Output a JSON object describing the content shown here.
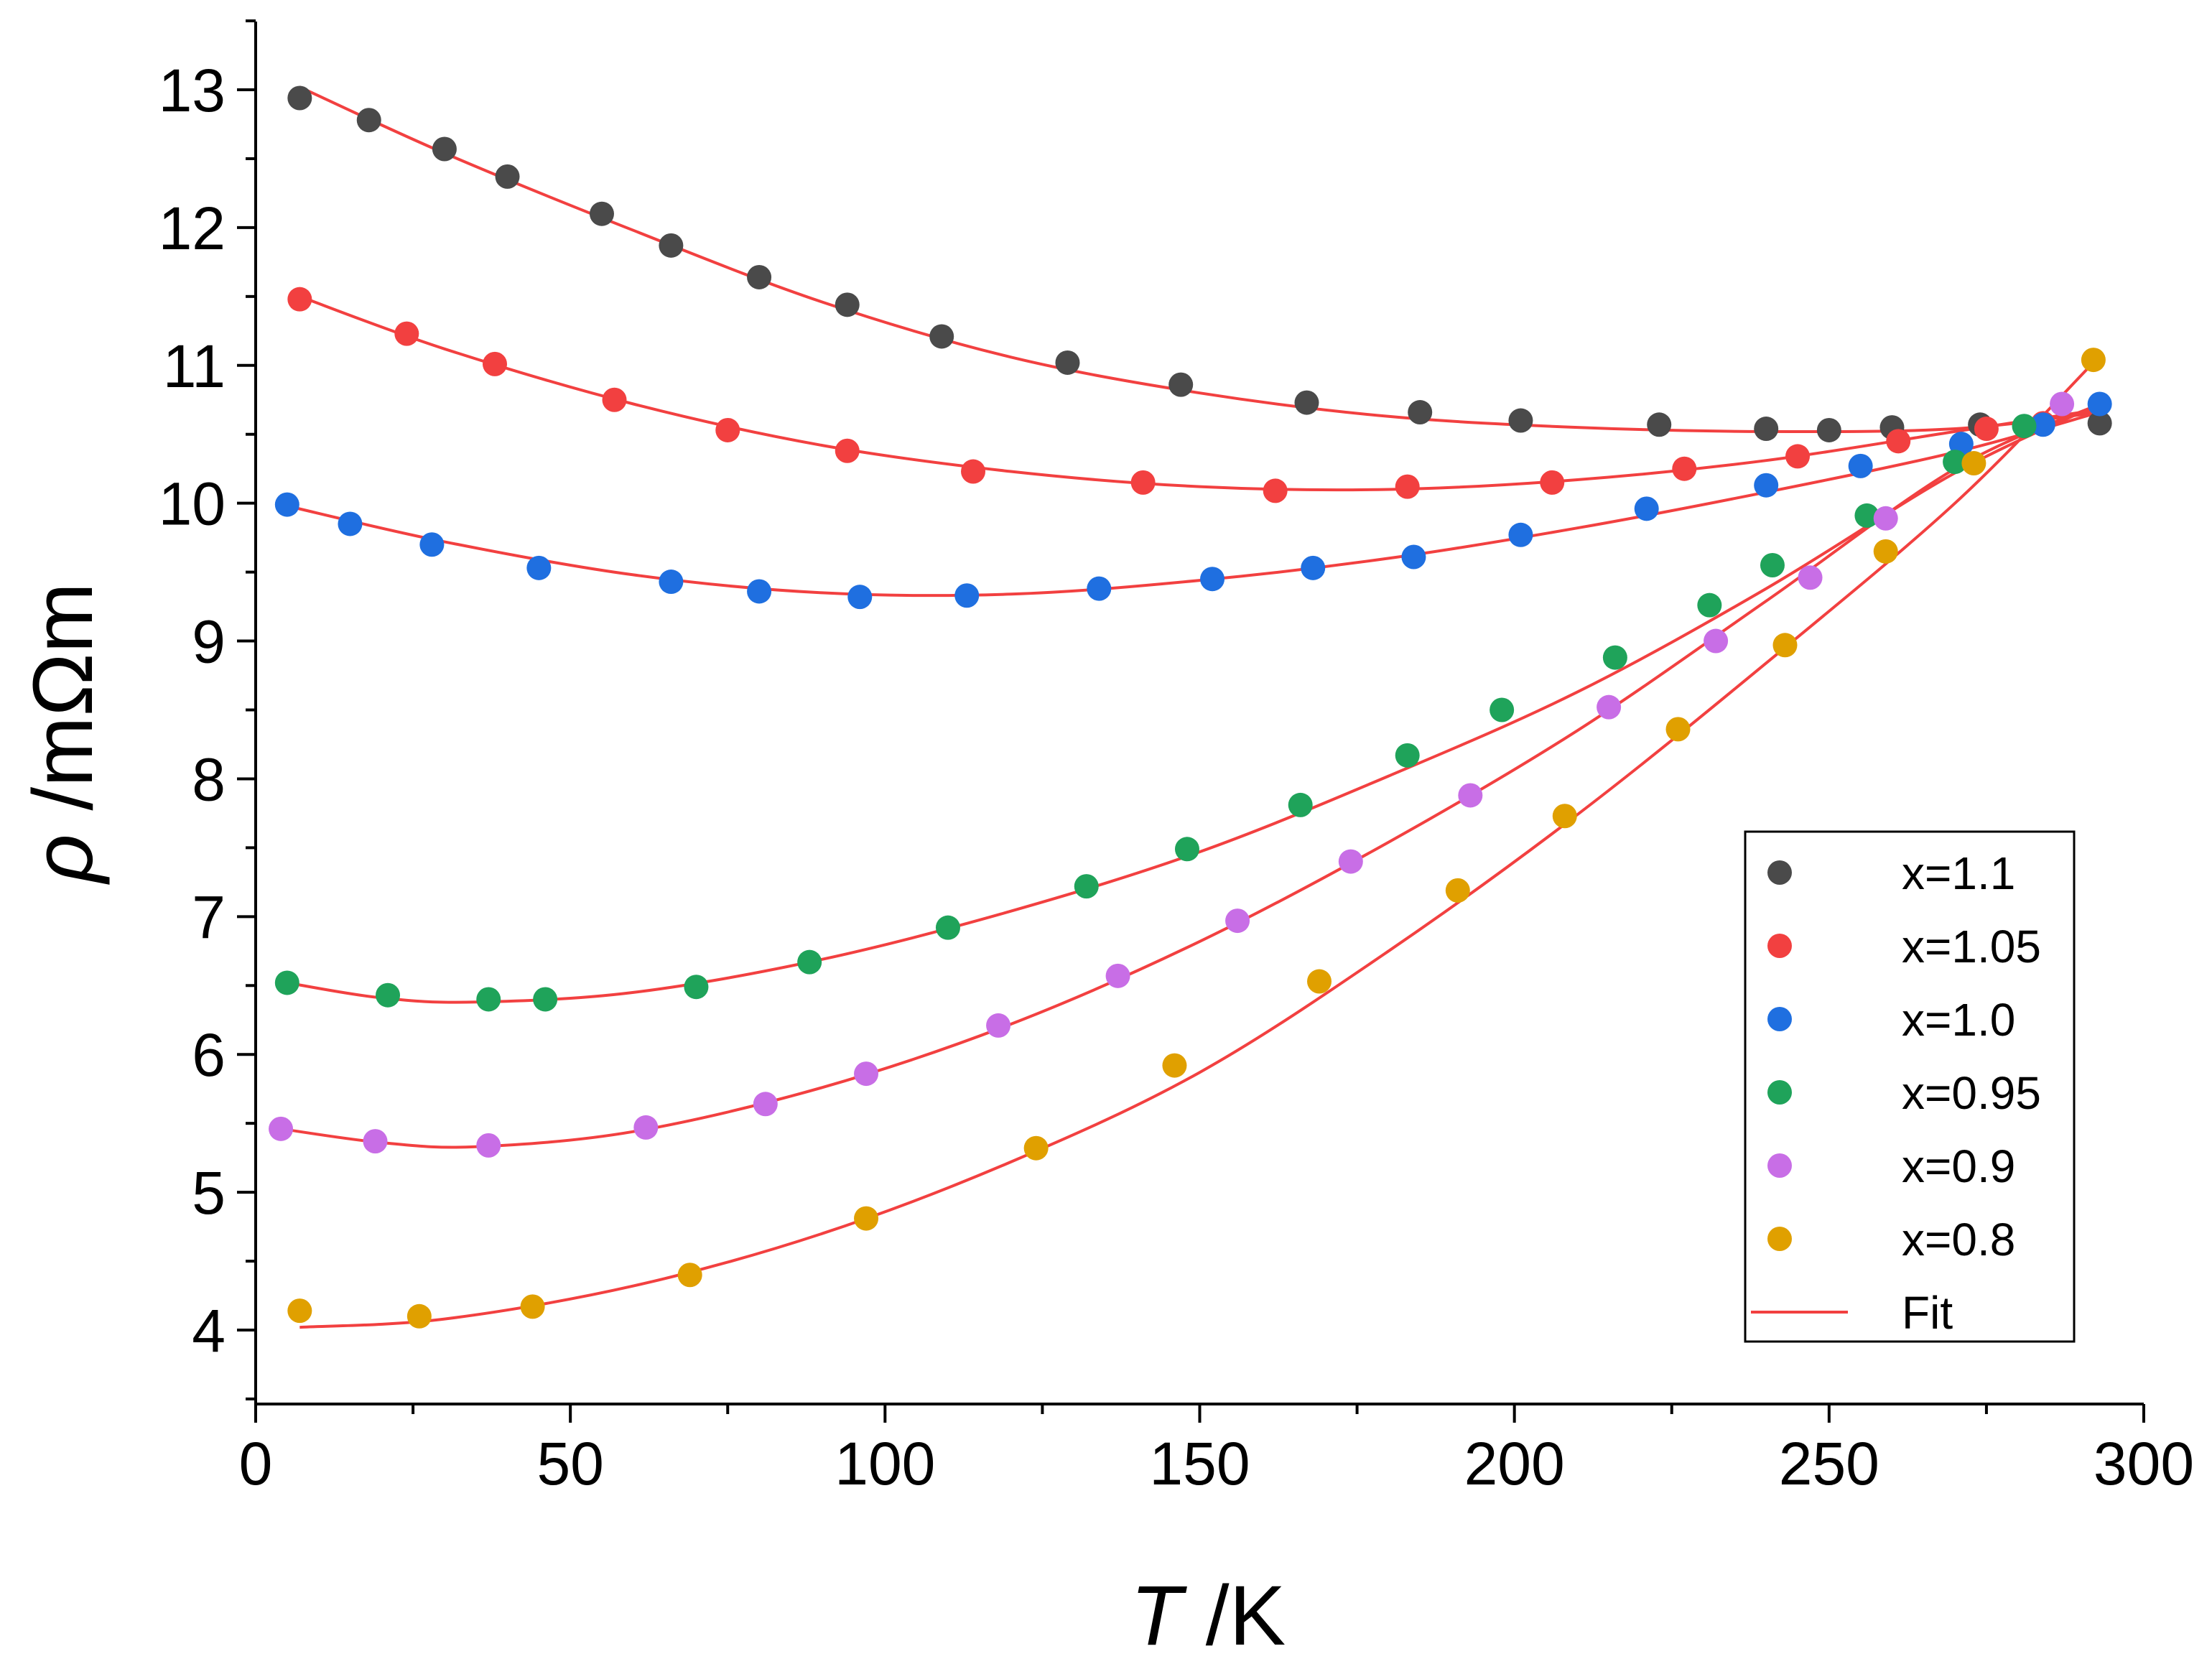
{
  "chart_data": {
    "type": "scatter",
    "title": "",
    "xlabel_symbol": "T",
    "xlabel_unit": " /K",
    "ylabel_symbol": "ρ",
    "ylabel_unit": " /mΩm",
    "xlim": [
      0,
      300
    ],
    "ylim": [
      3.5,
      13.5
    ],
    "xticks": [
      0,
      50,
      100,
      150,
      200,
      250,
      300
    ],
    "yticks": [
      4,
      5,
      6,
      7,
      8,
      9,
      10,
      11,
      12,
      13
    ],
    "grid": false,
    "legend_position": "lower-right",
    "series": [
      {
        "name": "x=1.1",
        "color": "#4a4a4a",
        "x": [
          7,
          18,
          30,
          40,
          55,
          66,
          80,
          94,
          109,
          129,
          147,
          167,
          185,
          201,
          223,
          240,
          250,
          260,
          274,
          293
        ],
        "y": [
          12.94,
          12.78,
          12.57,
          12.37,
          12.1,
          11.87,
          11.64,
          11.44,
          11.21,
          11.02,
          10.86,
          10.73,
          10.66,
          10.6,
          10.57,
          10.54,
          10.53,
          10.55,
          10.57,
          10.58
        ],
        "fit": [
          [
            7,
            13.02
          ],
          [
            30,
            12.54
          ],
          [
            60,
            11.98
          ],
          [
            90,
            11.46
          ],
          [
            120,
            11.06
          ],
          [
            150,
            10.8
          ],
          [
            180,
            10.63
          ],
          [
            210,
            10.55
          ],
          [
            240,
            10.52
          ],
          [
            270,
            10.54
          ],
          [
            293,
            10.66
          ]
        ]
      },
      {
        "name": "x=1.05",
        "color": "#f24040",
        "x": [
          7,
          24,
          38,
          57,
          75,
          94,
          114,
          141,
          162,
          183,
          206,
          227,
          245,
          261,
          275,
          284
        ],
        "y": [
          11.48,
          11.23,
          11.01,
          10.75,
          10.53,
          10.38,
          10.23,
          10.15,
          10.09,
          10.12,
          10.15,
          10.25,
          10.34,
          10.45,
          10.54,
          10.58
        ],
        "fit": [
          [
            7,
            11.5
          ],
          [
            30,
            11.12
          ],
          [
            60,
            10.72
          ],
          [
            90,
            10.42
          ],
          [
            120,
            10.23
          ],
          [
            150,
            10.12
          ],
          [
            180,
            10.1
          ],
          [
            210,
            10.17
          ],
          [
            240,
            10.31
          ],
          [
            270,
            10.52
          ],
          [
            293,
            10.68
          ]
        ]
      },
      {
        "name": "x=1.0",
        "color": "#1f6fe0",
        "x": [
          5,
          15,
          28,
          45,
          66,
          80,
          96,
          113,
          134,
          152,
          168,
          184,
          201,
          221,
          240,
          255,
          271,
          284,
          293
        ],
        "y": [
          9.99,
          9.85,
          9.7,
          9.53,
          9.43,
          9.36,
          9.32,
          9.33,
          9.38,
          9.45,
          9.53,
          9.61,
          9.77,
          9.96,
          10.13,
          10.27,
          10.43,
          10.57,
          10.72
        ],
        "fit": [
          [
            5,
            9.98
          ],
          [
            30,
            9.72
          ],
          [
            60,
            9.48
          ],
          [
            90,
            9.35
          ],
          [
            120,
            9.34
          ],
          [
            150,
            9.44
          ],
          [
            180,
            9.6
          ],
          [
            210,
            9.82
          ],
          [
            240,
            10.08
          ],
          [
            270,
            10.37
          ],
          [
            293,
            10.66
          ]
        ]
      },
      {
        "name": "x=0.95",
        "color": "#1fa35a",
        "x": [
          5,
          21,
          37,
          46,
          70,
          88,
          110,
          132,
          148,
          166,
          183,
          198,
          216,
          231,
          241,
          256,
          270,
          281
        ],
        "y": [
          6.52,
          6.43,
          6.4,
          6.4,
          6.49,
          6.67,
          6.92,
          7.22,
          7.49,
          7.81,
          8.17,
          8.5,
          8.88,
          9.26,
          9.55,
          9.91,
          10.3,
          10.56
        ],
        "fit": [
          [
            5,
            6.52
          ],
          [
            20,
            6.41
          ],
          [
            35,
            6.38
          ],
          [
            60,
            6.45
          ],
          [
            90,
            6.69
          ],
          [
            120,
            7.04
          ],
          [
            150,
            7.47
          ],
          [
            180,
            8.02
          ],
          [
            210,
            8.63
          ],
          [
            240,
            9.38
          ],
          [
            270,
            10.22
          ],
          [
            293,
            10.72
          ]
        ]
      },
      {
        "name": "x=0.9",
        "color": "#c86ee6",
        "x": [
          4,
          19,
          37,
          62,
          81,
          97,
          118,
          137,
          156,
          174,
          193,
          215,
          232,
          247,
          259,
          287
        ],
        "y": [
          5.46,
          5.37,
          5.34,
          5.47,
          5.64,
          5.86,
          6.21,
          6.57,
          6.97,
          7.4,
          7.88,
          8.52,
          9.0,
          9.46,
          9.89,
          10.72
        ],
        "fit": [
          [
            4,
            5.46
          ],
          [
            20,
            5.36
          ],
          [
            35,
            5.33
          ],
          [
            60,
            5.44
          ],
          [
            90,
            5.76
          ],
          [
            120,
            6.22
          ],
          [
            150,
            6.82
          ],
          [
            180,
            7.54
          ],
          [
            210,
            8.35
          ],
          [
            240,
            9.29
          ],
          [
            270,
            10.25
          ],
          [
            293,
            10.72
          ]
        ]
      },
      {
        "name": "x=0.8",
        "color": "#e0a000",
        "x": [
          7,
          26,
          44,
          69,
          97,
          124,
          146,
          169,
          191,
          208,
          226,
          243,
          259,
          273,
          292
        ],
        "y": [
          4.14,
          4.1,
          4.17,
          4.4,
          4.81,
          5.32,
          5.92,
          6.53,
          7.19,
          7.73,
          8.36,
          8.97,
          9.65,
          10.29,
          11.04
        ],
        "fit": [
          [
            7,
            4.02
          ],
          [
            30,
            4.08
          ],
          [
            60,
            4.32
          ],
          [
            90,
            4.7
          ],
          [
            120,
            5.22
          ],
          [
            150,
            5.87
          ],
          [
            180,
            6.75
          ],
          [
            210,
            7.74
          ],
          [
            240,
            8.84
          ],
          [
            270,
            10.0
          ],
          [
            292,
            11.02
          ]
        ]
      }
    ],
    "fit_series": {
      "name": "Fit",
      "color": "#f24040"
    }
  }
}
